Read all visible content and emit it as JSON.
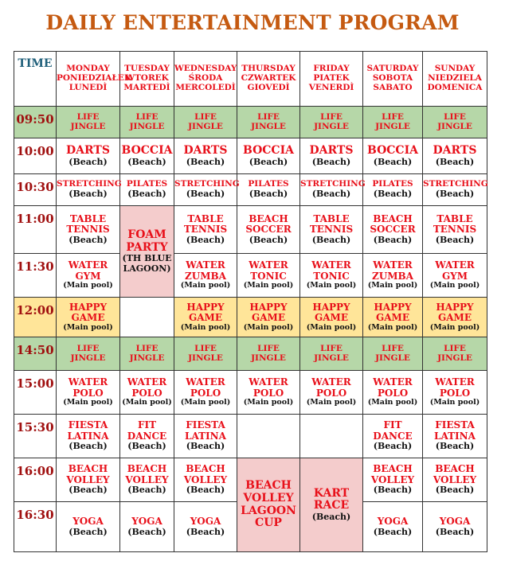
{
  "title": "DAILY ENTERTAINMENT PROGRAM",
  "colors": {
    "green": "#b6d7a8",
    "yellow": "#ffe599",
    "pink": "#f4cccc",
    "white": "#ffffff"
  },
  "header": {
    "time_label": "TIME",
    "days": [
      "MONDAY\nPONIEDZIAŁEK\nLUNEDÌ",
      "TUESDAY\nWTOREK\nMARTEDÌ",
      "WEDNESDAY\nŚRODA\nMERCOLEDÌ",
      "THURSDAY\nCZWARTEK\nGIOVEDÌ",
      "FRIDAY\nPIATEK\nVENERDÌ",
      "SATURDAY\nSOBOTA\nSABATO",
      "SUNDAY\nNIEDZIELA\nDOMENICA"
    ]
  },
  "rows": [
    {
      "time": "09:50",
      "bg": "green",
      "cells": [
        {
          "title": "LIFE\nJINGLE",
          "size": "small"
        },
        {
          "title": "LIFE\nJINGLE",
          "size": "small"
        },
        {
          "title": "LIFE\nJINGLE",
          "size": "small"
        },
        {
          "title": "LIFE\nJINGLE",
          "size": "small"
        },
        {
          "title": "LIFE\nJINGLE",
          "size": "small"
        },
        {
          "title": "LIFE\nJINGLE",
          "size": "small"
        },
        {
          "title": "LIFE\nJINGLE",
          "size": "small"
        }
      ]
    },
    {
      "time": "10:00",
      "bg": "white",
      "cells": [
        {
          "title": "DARTS",
          "sub": "(Beach)",
          "size": "big"
        },
        {
          "title": "BOCCIA",
          "sub": "(Beach)",
          "size": "big"
        },
        {
          "title": "DARTS",
          "sub": "(Beach)",
          "size": "big"
        },
        {
          "title": "BOCCIA",
          "sub": "(Beach)",
          "size": "big"
        },
        {
          "title": "DARTS",
          "sub": "(Beach)",
          "size": "big"
        },
        {
          "title": "BOCCIA",
          "sub": "(Beach)",
          "size": "big"
        },
        {
          "title": "DARTS",
          "sub": "(Beach)",
          "size": "big"
        }
      ]
    },
    {
      "time": "10:30",
      "bg": "white",
      "cells": [
        {
          "title": "STRETCHING",
          "sub": "(Beach)",
          "size": "small"
        },
        {
          "title": "PILATES",
          "sub": "(Beach)",
          "size": "small"
        },
        {
          "title": "STRETCHING",
          "sub": "(Beach)",
          "size": "small"
        },
        {
          "title": "PILATES",
          "sub": "(Beach)",
          "size": "small"
        },
        {
          "title": "STRETCHING",
          "sub": "(Beach)",
          "size": "small"
        },
        {
          "title": "PILATES",
          "sub": "(Beach)",
          "size": "small"
        },
        {
          "title": "STRETCHING",
          "sub": "(Beach)",
          "size": "small"
        }
      ]
    },
    {
      "time": "11:00",
      "bg": "white",
      "cells": [
        {
          "title": "TABLE\nTENNIS",
          "sub": "(Beach)"
        },
        {
          "title": "FOAM\nPARTY",
          "sub": "(TH BLUE\nLAGOON)",
          "size": "big",
          "rowspan": 2,
          "bg": "pink"
        },
        {
          "title": "TABLE\nTENNIS",
          "sub": "(Beach)"
        },
        {
          "title": "BEACH\nSOCCER",
          "sub": "(Beach)"
        },
        {
          "title": "TABLE\nTENNIS",
          "sub": "(Beach)"
        },
        {
          "title": "BEACH\nSOCCER",
          "sub": "(Beach)"
        },
        {
          "title": "TABLE\nTENNIS",
          "sub": "(Beach)"
        }
      ]
    },
    {
      "time": "11:30",
      "bg": "white",
      "cells": [
        {
          "title": "WATER\nGYM",
          "sub": "(Main pool)"
        },
        null,
        {
          "title": "WATER\nZUMBA",
          "sub": "(Main pool)"
        },
        {
          "title": "WATER\nTONIC",
          "sub": "(Main pool)"
        },
        {
          "title": "WATER\nTONIC",
          "sub": "(Main pool)"
        },
        {
          "title": "WATER\nZUMBA",
          "sub": "(Main pool)"
        },
        {
          "title": "WATER\nGYM",
          "sub": "(Main pool)"
        }
      ]
    },
    {
      "time": "12:00",
      "bg": "yellow",
      "cells": [
        {
          "title": "HAPPY\nGAME",
          "sub": "(Main pool)"
        },
        {
          "empty": true,
          "bg": "white"
        },
        {
          "title": "HAPPY\nGAME",
          "sub": "(Main pool)"
        },
        {
          "title": "HAPPY\nGAME",
          "sub": "(Main pool)"
        },
        {
          "title": "HAPPY\nGAME",
          "sub": "(Main pool)"
        },
        {
          "title": "HAPPY\nGAME",
          "sub": "(Main pool)"
        },
        {
          "title": "HAPPY\nGAME",
          "sub": "(Main pool)"
        }
      ]
    },
    {
      "time": "14:50",
      "bg": "green",
      "cells": [
        {
          "title": "LIFE\nJINGLE",
          "size": "small"
        },
        {
          "title": "LIFE\nJINGLE",
          "size": "small"
        },
        {
          "title": "LIFE\nJINGLE",
          "size": "small"
        },
        {
          "title": "LIFE\nJINGLE",
          "size": "small"
        },
        {
          "title": "LIFE\nJINGLE",
          "size": "small"
        },
        {
          "title": "LIFE\nJINGLE",
          "size": "small"
        },
        {
          "title": "LIFE\nJINGLE",
          "size": "small"
        }
      ]
    },
    {
      "time": "15:00",
      "bg": "white",
      "cells": [
        {
          "title": "WATER\nPOLO",
          "sub": "(Main pool)"
        },
        {
          "title": "WATER\nPOLO",
          "sub": "(Main pool)"
        },
        {
          "title": "WATER\nPOLO",
          "sub": "(Main pool)"
        },
        {
          "title": "WATER\nPOLO",
          "sub": "(Main pool)"
        },
        {
          "title": "WATER\nPOLO",
          "sub": "(Main pool)"
        },
        {
          "title": "WATER\nPOLO",
          "sub": "(Main pool)"
        },
        {
          "title": "WATER\nPOLO",
          "sub": "(Main pool)"
        }
      ]
    },
    {
      "time": "15:30",
      "bg": "white",
      "cells": [
        {
          "title": "FIESTA\nLATINA",
          "sub": "(Beach)"
        },
        {
          "title": "FIT\nDANCE",
          "sub": "(Beach)"
        },
        {
          "title": "FIESTA\nLATINA",
          "sub": "(Beach)"
        },
        {
          "empty": true
        },
        {
          "empty": true
        },
        {
          "title": "FIT\nDANCE",
          "sub": "(Beach)"
        },
        {
          "title": "FIESTA\nLATINA",
          "sub": "(Beach)"
        }
      ]
    },
    {
      "time": "16:00",
      "bg": "white",
      "cells": [
        {
          "title": "BEACH\nVOLLEY",
          "sub": "(Beach)"
        },
        {
          "title": "BEACH\nVOLLEY",
          "sub": "(Beach)"
        },
        {
          "title": "BEACH\nVOLLEY",
          "sub": "(Beach)"
        },
        {
          "title": "BEACH\nVOLLEY\nLAGOON\nCUP",
          "size": "big",
          "rowspan": 2,
          "bg": "pink"
        },
        {
          "title": "KART\nRACE",
          "sub": "(Beach)",
          "size": "big",
          "rowspan": 2,
          "bg": "pink"
        },
        {
          "title": "BEACH\nVOLLEY",
          "sub": "(Beach)"
        },
        {
          "title": "BEACH\nVOLLEY",
          "sub": "(Beach)"
        }
      ]
    },
    {
      "time": "16:30",
      "bg": "white",
      "cells": [
        {
          "title": "YOGA",
          "sub": "(Beach)"
        },
        {
          "title": "YOGA",
          "sub": "(Beach)"
        },
        {
          "title": "YOGA",
          "sub": "(Beach)"
        },
        null,
        null,
        {
          "title": "YOGA",
          "sub": "(Beach)"
        },
        {
          "title": "YOGA",
          "sub": "(Beach)"
        }
      ]
    }
  ]
}
